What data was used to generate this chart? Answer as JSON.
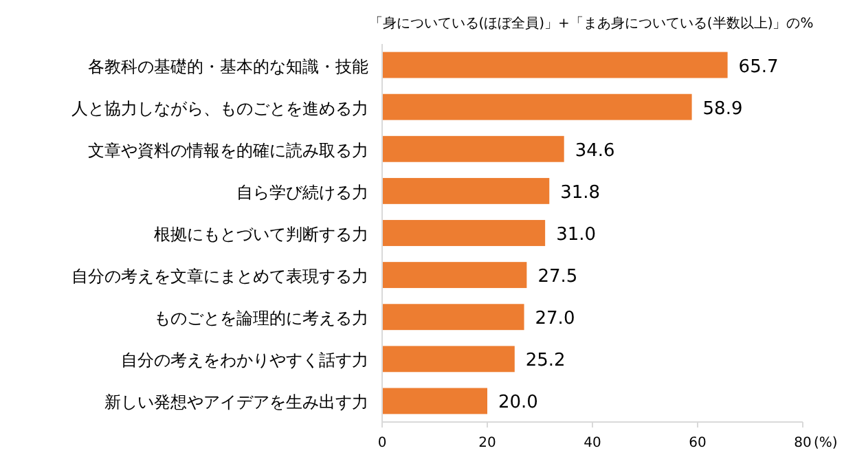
{
  "chart_data": {
    "type": "bar",
    "orientation": "horizontal",
    "title": "「身についている(ほぼ全員)」+「まあ身についている(半数以上)」の%",
    "xlabel": "(%)",
    "categories": [
      "各教科の基礎的・基本的な知識・技能",
      "人と協力しながら、ものごとを進める力",
      "文章や資料の情報を的確に読み取る力",
      "自ら学び続ける力",
      "根拠にもとづいて判断する力",
      "自分の考えを文章にまとめて表現する力",
      "ものごとを論理的に考える力",
      "自分の考えをわかりやすく話す力",
      "新しい発想やアイデアを生み出す力"
    ],
    "values": [
      65.7,
      58.9,
      34.6,
      31.8,
      31.0,
      27.5,
      27.0,
      25.2,
      20.0
    ],
    "value_labels": [
      "65.7",
      "58.9",
      "34.6",
      "31.8",
      "31.0",
      "27.5",
      "27.0",
      "25.2",
      "20.0"
    ],
    "color": "#ed7d31",
    "xlim": [
      0,
      80
    ],
    "xticks": [
      0,
      20,
      40,
      60,
      80
    ]
  }
}
